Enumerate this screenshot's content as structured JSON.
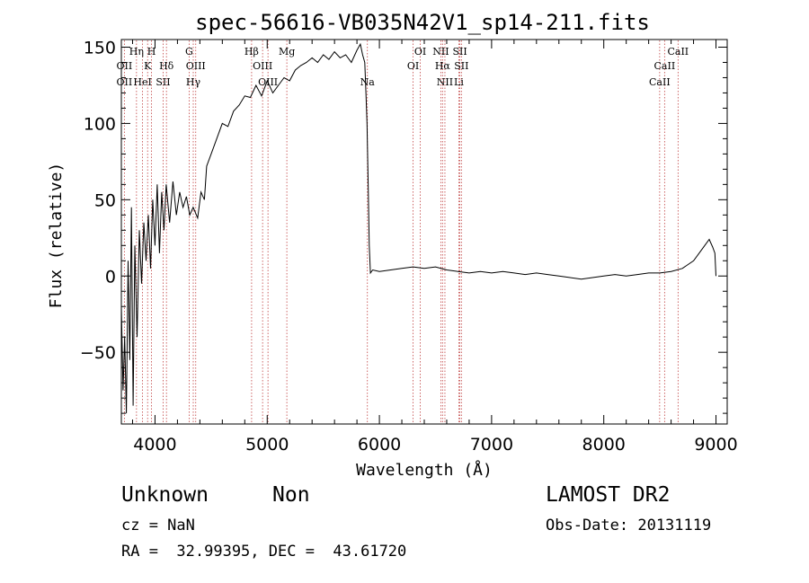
{
  "chart_data": {
    "type": "line",
    "title": "spec-56616-VB035N42V1_sp14-211.fits",
    "xlabel": "Wavelength (Å)",
    "ylabel": "Flux (relative)",
    "xlim": [
      3700,
      9100
    ],
    "ylim": [
      -97,
      155
    ],
    "xticks": [
      4000,
      5000,
      6000,
      7000,
      8000,
      9000
    ],
    "yticks": [
      -50,
      0,
      50,
      100,
      150
    ],
    "grid": false,
    "series": [
      {
        "points": [
          [
            3700,
            -20
          ],
          [
            3715,
            -75
          ],
          [
            3730,
            -40
          ],
          [
            3745,
            -90
          ],
          [
            3760,
            10
          ],
          [
            3775,
            -55
          ],
          [
            3790,
            45
          ],
          [
            3805,
            -85
          ],
          [
            3820,
            20
          ],
          [
            3840,
            -40
          ],
          [
            3860,
            30
          ],
          [
            3880,
            -5
          ],
          [
            3900,
            35
          ],
          [
            3920,
            10
          ],
          [
            3940,
            40
          ],
          [
            3960,
            5
          ],
          [
            3980,
            50
          ],
          [
            4000,
            20
          ],
          [
            4020,
            60
          ],
          [
            4040,
            15
          ],
          [
            4060,
            55
          ],
          [
            4080,
            30
          ],
          [
            4100,
            60
          ],
          [
            4130,
            35
          ],
          [
            4160,
            62
          ],
          [
            4190,
            40
          ],
          [
            4220,
            55
          ],
          [
            4250,
            45
          ],
          [
            4280,
            52
          ],
          [
            4310,
            40
          ],
          [
            4340,
            45
          ],
          [
            4380,
            38
          ],
          [
            4410,
            55
          ],
          [
            4440,
            50
          ],
          [
            4460,
            72
          ],
          [
            4500,
            80
          ],
          [
            4550,
            90
          ],
          [
            4600,
            100
          ],
          [
            4650,
            98
          ],
          [
            4700,
            108
          ],
          [
            4750,
            112
          ],
          [
            4800,
            118
          ],
          [
            4850,
            117
          ],
          [
            4900,
            125
          ],
          [
            4950,
            118
          ],
          [
            5000,
            128
          ],
          [
            5050,
            120
          ],
          [
            5100,
            125
          ],
          [
            5150,
            130
          ],
          [
            5200,
            128
          ],
          [
            5250,
            135
          ],
          [
            5300,
            138
          ],
          [
            5350,
            140
          ],
          [
            5400,
            143
          ],
          [
            5450,
            140
          ],
          [
            5500,
            145
          ],
          [
            5550,
            142
          ],
          [
            5600,
            147
          ],
          [
            5650,
            143
          ],
          [
            5700,
            145
          ],
          [
            5750,
            140
          ],
          [
            5800,
            148
          ],
          [
            5830,
            152
          ],
          [
            5850,
            145
          ],
          [
            5870,
            140
          ],
          [
            5880,
            120
          ],
          [
            5890,
            100
          ],
          [
            5900,
            60
          ],
          [
            5910,
            20
          ],
          [
            5920,
            2
          ],
          [
            5940,
            4
          ],
          [
            6000,
            3
          ],
          [
            6100,
            4
          ],
          [
            6200,
            5
          ],
          [
            6300,
            6
          ],
          [
            6400,
            5
          ],
          [
            6500,
            6
          ],
          [
            6600,
            4
          ],
          [
            6700,
            3
          ],
          [
            6800,
            2
          ],
          [
            6900,
            3
          ],
          [
            7000,
            2
          ],
          [
            7100,
            3
          ],
          [
            7200,
            2
          ],
          [
            7300,
            1
          ],
          [
            7400,
            2
          ],
          [
            7500,
            1
          ],
          [
            7600,
            0
          ],
          [
            7700,
            -1
          ],
          [
            7800,
            -2
          ],
          [
            7900,
            -1
          ],
          [
            8000,
            0
          ],
          [
            8100,
            1
          ],
          [
            8200,
            0
          ],
          [
            8300,
            1
          ],
          [
            8400,
            2
          ],
          [
            8500,
            2
          ],
          [
            8600,
            3
          ],
          [
            8700,
            5
          ],
          [
            8800,
            10
          ],
          [
            8850,
            15
          ],
          [
            8900,
            20
          ],
          [
            8940,
            24
          ],
          [
            8970,
            19
          ],
          [
            8990,
            15
          ],
          [
            9000,
            0
          ]
        ]
      }
    ],
    "line_labels": [
      {
        "text": "OII",
        "wave": 3727,
        "row": 2
      },
      {
        "text": "OII",
        "wave": 3727,
        "row": 3
      },
      {
        "text": "Hη",
        "wave": 3835,
        "row": 1
      },
      {
        "text": "H",
        "wave": 3969,
        "row": 1
      },
      {
        "text": "K",
        "wave": 3934,
        "row": 2
      },
      {
        "text": "HeI",
        "wave": 3889,
        "row": 3
      },
      {
        "text": "SII",
        "wave": 4072,
        "row": 3
      },
      {
        "text": "Hδ",
        "wave": 4102,
        "row": 2
      },
      {
        "text": "G",
        "wave": 4304,
        "row": 1
      },
      {
        "text": "OIII",
        "wave": 4363,
        "row": 2
      },
      {
        "text": "Hγ",
        "wave": 4341,
        "row": 3
      },
      {
        "text": "Hβ",
        "wave": 4861,
        "row": 1
      },
      {
        "text": "OIII",
        "wave": 4959,
        "row": 2
      },
      {
        "text": "OIII",
        "wave": 5007,
        "row": 3
      },
      {
        "text": "Mg",
        "wave": 5175,
        "row": 1
      },
      {
        "text": "Na",
        "wave": 5893,
        "row": 3
      },
      {
        "text": "OI",
        "wave": 6300,
        "row": 2
      },
      {
        "text": "OI",
        "wave": 6364,
        "row": 1
      },
      {
        "text": "NII",
        "wave": 6548,
        "row": 1
      },
      {
        "text": "Hα",
        "wave": 6563,
        "row": 2
      },
      {
        "text": "NII",
        "wave": 6584,
        "row": 3
      },
      {
        "text": "SII",
        "wave": 6717,
        "row": 1
      },
      {
        "text": "SII",
        "wave": 6731,
        "row": 2
      },
      {
        "text": "Li",
        "wave": 6708,
        "row": 3
      },
      {
        "text": "CaII",
        "wave": 8498,
        "row": 3
      },
      {
        "text": "CaII",
        "wave": 8542,
        "row": 2
      },
      {
        "text": "CaII",
        "wave": 8662,
        "row": 1
      }
    ],
    "line_waves": [
      3727,
      3835,
      3889,
      3934,
      3969,
      4072,
      4102,
      4304,
      4341,
      4363,
      4861,
      4959,
      5007,
      5175,
      5893,
      6300,
      6364,
      6548,
      6563,
      6584,
      6708,
      6717,
      6731,
      8498,
      8542,
      8662
    ],
    "colors": {
      "spectrum": "#000000",
      "line_markers": "#c04040",
      "frame": "#000000"
    }
  },
  "footer": {
    "class_label": "Unknown",
    "subclass_label": "Non",
    "survey_label": "LAMOST DR2",
    "cz_text": "cz = NaN",
    "obs_date_text": "Obs-Date: 20131119",
    "coords_text": "RA =  32.99395, DEC =  43.61720"
  }
}
